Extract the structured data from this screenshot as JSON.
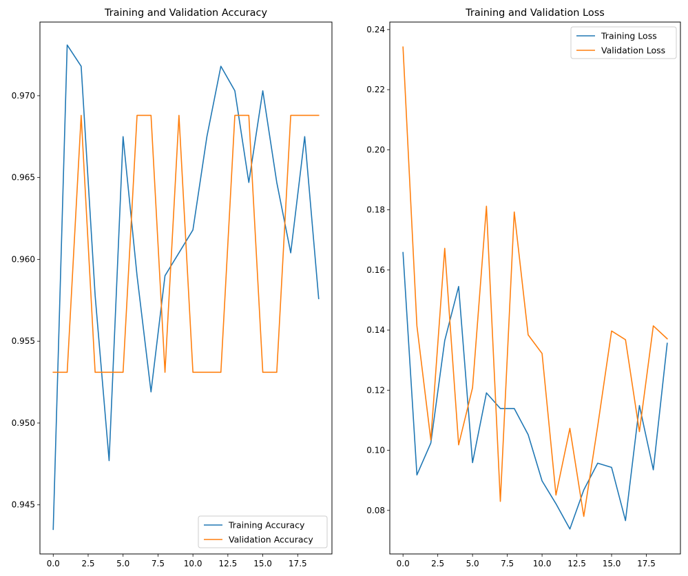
{
  "chart_data": [
    {
      "type": "line",
      "title": "Training and Validation Accuracy",
      "xlabel": "",
      "ylabel": "",
      "xlim": [
        -0.95,
        19.95
      ],
      "ylim": [
        0.942,
        0.9745
      ],
      "xticks": [
        0.0,
        2.5,
        5.0,
        7.5,
        10.0,
        12.5,
        15.0,
        17.5
      ],
      "xtick_labels": [
        "0.0",
        "2.5",
        "5.0",
        "7.5",
        "10.0",
        "12.5",
        "15.0",
        "17.5"
      ],
      "yticks": [
        0.945,
        0.95,
        0.955,
        0.96,
        0.965,
        0.97
      ],
      "ytick_labels": [
        "0.945",
        "0.950",
        "0.955",
        "0.960",
        "0.965",
        "0.970"
      ],
      "legend_position": "lower-right",
      "grid": false,
      "x": [
        0,
        1,
        2,
        3,
        4,
        5,
        6,
        7,
        8,
        9,
        10,
        11,
        12,
        13,
        14,
        15,
        16,
        17,
        18,
        19
      ],
      "series": [
        {
          "name": "Training Accuracy",
          "color": "#1f77b4",
          "values": [
            0.9435,
            0.9731,
            0.9718,
            0.9578,
            0.9477,
            0.9675,
            0.959,
            0.9519,
            0.959,
            0.9604,
            0.9618,
            0.9675,
            0.9718,
            0.9703,
            0.9647,
            0.9703,
            0.9647,
            0.9604,
            0.9675,
            0.9576
          ]
        },
        {
          "name": "Validation Accuracy",
          "color": "#ff7f0e",
          "values": [
            0.9531,
            0.9531,
            0.9688,
            0.9531,
            0.9531,
            0.9531,
            0.9688,
            0.9688,
            0.9531,
            0.9688,
            0.9531,
            0.9531,
            0.9531,
            0.9688,
            0.9688,
            0.9531,
            0.9531,
            0.9688,
            0.9688,
            0.9688
          ]
        }
      ]
    },
    {
      "type": "line",
      "title": "Training and Validation Loss",
      "xlabel": "",
      "ylabel": "",
      "xlim": [
        -0.95,
        19.95
      ],
      "ylim": [
        0.0655,
        0.2425
      ],
      "xticks": [
        0.0,
        2.5,
        5.0,
        7.5,
        10.0,
        12.5,
        15.0,
        17.5
      ],
      "xtick_labels": [
        "0.0",
        "2.5",
        "5.0",
        "7.5",
        "10.0",
        "12.5",
        "15.0",
        "17.5"
      ],
      "yticks": [
        0.08,
        0.1,
        0.12,
        0.14,
        0.16,
        0.18,
        0.2,
        0.22,
        0.24
      ],
      "ytick_labels": [
        "0.08",
        "0.10",
        "0.12",
        "0.14",
        "0.16",
        "0.18",
        "0.20",
        "0.22",
        "0.24"
      ],
      "legend_position": "upper-right",
      "grid": false,
      "x": [
        0,
        1,
        2,
        3,
        4,
        5,
        6,
        7,
        8,
        9,
        10,
        11,
        12,
        13,
        14,
        15,
        16,
        17,
        18,
        19
      ],
      "series": [
        {
          "name": "Training Loss",
          "color": "#1f77b4",
          "values": [
            0.1658,
            0.0918,
            0.1024,
            0.1365,
            0.1545,
            0.0959,
            0.1191,
            0.1139,
            0.1139,
            0.1052,
            0.0898,
            0.0822,
            0.0738,
            0.0868,
            0.0957,
            0.0943,
            0.0766,
            0.1149,
            0.0935,
            0.1356
          ]
        },
        {
          "name": "Validation Loss",
          "color": "#ff7f0e",
          "values": [
            0.2342,
            0.1414,
            0.1034,
            0.1672,
            0.1018,
            0.1208,
            0.1812,
            0.083,
            0.1793,
            0.1384,
            0.1322,
            0.0851,
            0.1073,
            0.078,
            0.108,
            0.1397,
            0.1368,
            0.1062,
            0.1414,
            0.1371
          ]
        }
      ]
    }
  ]
}
